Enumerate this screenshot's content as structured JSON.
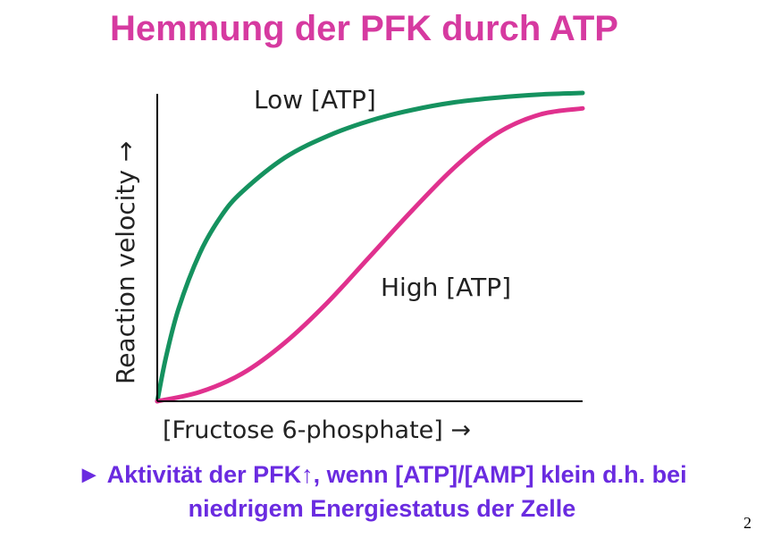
{
  "slide": {
    "title": "Hemmung der PFK durch ATP",
    "caption_line1": "► Aktivität der PFK↑, wenn [ATP]/[AMP] klein d.h. bei",
    "caption_line2": "niedrigem Energiestatus der Zelle",
    "page_number": "2",
    "title_color": "#d63aa0",
    "caption_color": "#6a2be0"
  },
  "chart_data": {
    "type": "line",
    "xlabel": "[Fructose 6-phosphate] →",
    "ylabel": "Reaction velocity →",
    "xlim": [
      0,
      1
    ],
    "ylim": [
      0,
      1
    ],
    "grid": false,
    "series": [
      {
        "name": "Low [ATP]",
        "color": "#15925f",
        "x": [
          0,
          0.02,
          0.05,
          0.1,
          0.15,
          0.2,
          0.3,
          0.4,
          0.5,
          0.6,
          0.7,
          0.8,
          0.9,
          1.0
        ],
        "y": [
          0,
          0.14,
          0.3,
          0.48,
          0.6,
          0.68,
          0.79,
          0.86,
          0.91,
          0.945,
          0.97,
          0.985,
          0.995,
          1.0
        ]
      },
      {
        "name": "High [ATP]",
        "color": "#e0318e",
        "x": [
          0,
          0.1,
          0.2,
          0.3,
          0.4,
          0.5,
          0.6,
          0.7,
          0.8,
          0.9,
          1.0
        ],
        "y": [
          0,
          0.03,
          0.09,
          0.19,
          0.32,
          0.47,
          0.62,
          0.76,
          0.87,
          0.93,
          0.95
        ]
      }
    ]
  }
}
